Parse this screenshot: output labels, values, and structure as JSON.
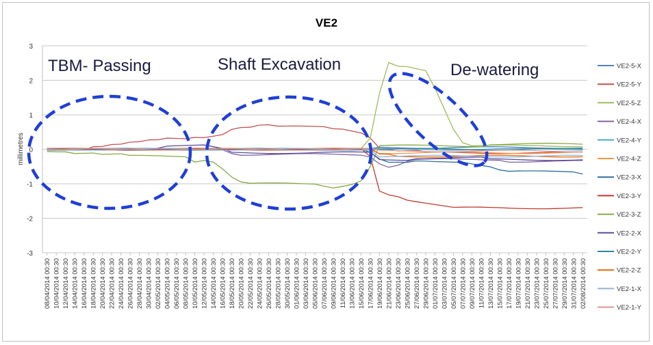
{
  "chart_data": {
    "type": "line",
    "title": "VE2",
    "ylabel": "millimetres",
    "xlabel": "",
    "ylim": [
      -3,
      3
    ],
    "yticks": [
      "3",
      "2",
      "1",
      "0",
      "-1",
      "-2",
      "-3"
    ],
    "grid": "horizontal",
    "legend_position": "right",
    "x": [
      "08/04/2014 00:30",
      "10/04/2014 00:30",
      "12/04/2014 00:30",
      "14/04/2014 00:30",
      "16/04/2014 00:30",
      "18/04/2014 00:30",
      "20/04/2014 00:30",
      "22/04/2014 00:30",
      "24/04/2014 00:30",
      "26/04/2014 00:30",
      "28/04/2014 00:30",
      "30/04/2014 00:30",
      "02/05/2014 00:30",
      "04/05/2014 00:30",
      "06/05/2014 00:30",
      "08/05/2014 00:30",
      "10/05/2014 00:30",
      "12/05/2014 00:30",
      "14/05/2014 00:30",
      "16/05/2014 00:30",
      "18/05/2014 00:30",
      "20/05/2014 00:30",
      "22/05/2014 00:30",
      "24/05/2014 00:30",
      "26/05/2014 00:30",
      "28/05/2014 00:30",
      "30/05/2014 00:30",
      "01/06/2014 00:30",
      "03/06/2014 00:30",
      "05/06/2014 00:30",
      "07/06/2014 00:30",
      "09/06/2014 00:30",
      "11/06/2014 00:30",
      "13/06/2014 00:30",
      "15/06/2014 00:30",
      "17/06/2014 00:30",
      "19/06/2014 00:30",
      "21/06/2014 00:30",
      "23/06/2014 00:30",
      "25/06/2014 00:30",
      "27/06/2014 00:30",
      "29/06/2014 00:30",
      "01/07/2014 00:30",
      "03/07/2014 00:30",
      "05/07/2014 00:30",
      "07/07/2014 00:30",
      "09/07/2014 00:30",
      "11/07/2014 00:30",
      "13/07/2014 00:30",
      "15/07/2014 00:30",
      "17/07/2014 00:30",
      "19/07/2014 00:30",
      "21/07/2014 00:30",
      "23/07/2014 00:30",
      "25/07/2014 00:30",
      "27/07/2014 00:30",
      "29/07/2014 00:30",
      "31/07/2014 00:30",
      "02/08/2014 00:30"
    ],
    "series": [
      {
        "name": "VE2-5-X",
        "color": "#4f81bd",
        "values": [
          0,
          0,
          0,
          0,
          0,
          0,
          0,
          0,
          0,
          0,
          0,
          0,
          0,
          0,
          0,
          0,
          0,
          0,
          0,
          0,
          0,
          0,
          0,
          0,
          0,
          0,
          0,
          0,
          0,
          0,
          0,
          0,
          0,
          0,
          0,
          0,
          0.05,
          0.05,
          0.05,
          0.05,
          0.05,
          0.05,
          0.05,
          0.05,
          0.05,
          0.05,
          0.05,
          0.05,
          0.05,
          0.05,
          0.05,
          0.05,
          0.05,
          0.05,
          0.05,
          0.05,
          0.05,
          0.05,
          0.05
        ]
      },
      {
        "name": "VE2-5-Y",
        "color": "#c0504d",
        "values": [
          0,
          0,
          0,
          0,
          0,
          0.1,
          0.1,
          0.15,
          0.15,
          0.2,
          0.2,
          0.25,
          0.25,
          0.3,
          0.3,
          0.3,
          0.35,
          0.35,
          0.4,
          0.45,
          0.6,
          0.65,
          0.65,
          0.7,
          0.7,
          0.65,
          0.65,
          0.65,
          0.65,
          0.65,
          0.65,
          0.6,
          0.6,
          0.55,
          0.5,
          0.35,
          0.05,
          0,
          -0.05,
          -0.05,
          -0.05,
          -0.1,
          -0.1,
          -0.1,
          -0.1,
          -0.1,
          -0.1,
          -0.1,
          -0.1,
          -0.1,
          -0.1,
          -0.1,
          -0.1,
          -0.1,
          -0.1,
          -0.1,
          -0.1,
          -0.1,
          -0.1
        ]
      },
      {
        "name": "VE2-5-Z",
        "color": "#9bbb59",
        "values": [
          0,
          0,
          0,
          0,
          0,
          0,
          0,
          0,
          0,
          0,
          0,
          0,
          0,
          0,
          0,
          0,
          0,
          0,
          0,
          0,
          0,
          0,
          0,
          0,
          0,
          0,
          0,
          0,
          0,
          0,
          0,
          0,
          0,
          0,
          0,
          0.3,
          1.6,
          2.5,
          2.4,
          2.4,
          2.35,
          2.3,
          1.8,
          1.2,
          0.6,
          0.2,
          0.1,
          0.1,
          0.1,
          0.1,
          0.1,
          0.1,
          0.1,
          0.1,
          0.1,
          0.1,
          0.1,
          0.1,
          0.1
        ]
      },
      {
        "name": "VE2-4-X",
        "color": "#8064a2",
        "values": [
          0,
          0,
          0,
          0,
          0,
          0,
          0,
          0,
          0,
          0,
          0,
          0,
          0,
          0,
          0,
          0,
          0,
          0,
          0,
          0,
          -0.1,
          -0.15,
          -0.15,
          -0.15,
          -0.15,
          -0.15,
          -0.15,
          -0.15,
          -0.15,
          -0.15,
          -0.15,
          -0.15,
          -0.15,
          -0.15,
          -0.15,
          -0.2,
          -0.4,
          -0.5,
          -0.45,
          -0.35,
          -0.3,
          -0.3,
          -0.3,
          -0.3,
          -0.3,
          -0.3,
          -0.3,
          -0.3,
          -0.3,
          -0.3,
          -0.35,
          -0.35,
          -0.35,
          -0.35,
          -0.35,
          -0.35,
          -0.35,
          -0.35,
          -0.35
        ]
      },
      {
        "name": "VE2-4-Y",
        "color": "#4bacc6",
        "values": [
          0,
          0,
          0,
          0,
          0,
          0,
          0,
          0,
          0,
          0,
          0,
          0,
          0,
          0,
          0,
          0,
          0,
          0,
          0,
          0,
          0,
          0,
          0,
          0,
          0,
          0,
          0,
          0,
          0,
          0,
          0,
          0,
          0,
          0,
          0,
          0,
          0,
          0,
          0,
          0,
          0,
          0,
          0,
          0,
          0,
          0,
          0,
          0,
          0,
          0,
          0,
          0,
          0,
          0,
          0,
          0,
          0,
          0,
          0
        ]
      },
      {
        "name": "VE2-4-Z",
        "color": "#f79646",
        "values": [
          0,
          0,
          0,
          0,
          0,
          0,
          0,
          0,
          0,
          0,
          0,
          0,
          0,
          0,
          0,
          0,
          0,
          0,
          0,
          0,
          0,
          0,
          0,
          0,
          0,
          0,
          0,
          0,
          0,
          0,
          0,
          0,
          0,
          0,
          0,
          0,
          -0.1,
          -0.1,
          -0.1,
          -0.1,
          -0.1,
          -0.1,
          -0.1,
          -0.1,
          -0.1,
          -0.1,
          -0.1,
          -0.1,
          -0.1,
          -0.1,
          -0.1,
          -0.1,
          -0.1,
          -0.1,
          -0.1,
          -0.1,
          -0.1,
          -0.1,
          -0.1
        ]
      },
      {
        "name": "VE2-3-X",
        "color": "#2c6e9b",
        "values": [
          0,
          0,
          0,
          0,
          0,
          0,
          0,
          0,
          0,
          0,
          0,
          0,
          0,
          0,
          0,
          0,
          0,
          0,
          0,
          0,
          0,
          0,
          0,
          0,
          0,
          0,
          0,
          0,
          0,
          0,
          0,
          0,
          0,
          0,
          0,
          -0.1,
          -0.3,
          -0.4,
          -0.4,
          -0.4,
          -0.35,
          -0.35,
          -0.35,
          -0.35,
          -0.35,
          -0.35,
          -0.4,
          -0.45,
          -0.5,
          -0.6,
          -0.65,
          -0.65,
          -0.65,
          -0.65,
          -0.65,
          -0.65,
          -0.65,
          -0.65,
          -0.7
        ]
      },
      {
        "name": "VE2-3-Y",
        "color": "#c0392b",
        "values": [
          0,
          0,
          0,
          0,
          0,
          0,
          0,
          0,
          0,
          0,
          0,
          0,
          0,
          0,
          0,
          0,
          0,
          0,
          0,
          0,
          0,
          0,
          0,
          0,
          0,
          0,
          0,
          0,
          0,
          0,
          0,
          0,
          0,
          0,
          0,
          -0.2,
          -1.2,
          -1.3,
          -1.35,
          -1.45,
          -1.5,
          -1.55,
          -1.6,
          -1.65,
          -1.7,
          -1.7,
          -1.7,
          -1.7,
          -1.7,
          -1.7,
          -1.7,
          -1.7,
          -1.7,
          -1.7,
          -1.7,
          -1.7,
          -1.7,
          -1.7,
          -1.7
        ]
      },
      {
        "name": "VE2-3-Z",
        "color": "#86a944",
        "values": [
          -0.05,
          -0.05,
          -0.05,
          -0.1,
          -0.1,
          -0.1,
          -0.15,
          -0.15,
          -0.15,
          -0.2,
          -0.2,
          -0.2,
          -0.2,
          -0.2,
          -0.2,
          -0.2,
          -0.35,
          -0.3,
          -0.35,
          -0.55,
          -0.8,
          -0.95,
          -1,
          -1,
          -1,
          -1,
          -1,
          -1,
          -1,
          -1,
          -1.05,
          -1.1,
          -1.05,
          -1,
          -0.9,
          -0.5,
          0.1,
          0.1,
          0.1,
          0.1,
          0.1,
          0.1,
          0.1,
          0.1,
          0.1,
          0.1,
          0.1,
          0.1,
          0.15,
          0.15,
          0.15,
          0.15,
          0.15,
          0.15,
          0.15,
          0.15,
          0.15,
          0.15,
          0.15
        ]
      },
      {
        "name": "VE2-2-X",
        "color": "#5b4a9b",
        "values": [
          0,
          0,
          0,
          0,
          0,
          0,
          0,
          0,
          0,
          0,
          0,
          0,
          0.05,
          0.1,
          0.1,
          0.1,
          0.1,
          0.1,
          0.05,
          0,
          -0.1,
          -0.1,
          -0.1,
          -0.1,
          -0.1,
          -0.1,
          -0.1,
          -0.1,
          -0.1,
          -0.1,
          -0.1,
          -0.1,
          -0.1,
          -0.1,
          -0.1,
          -0.1,
          -0.3,
          -0.3,
          -0.3,
          -0.3,
          -0.25,
          -0.25,
          -0.25,
          -0.25,
          -0.25,
          -0.25,
          -0.25,
          -0.25,
          -0.3,
          -0.3,
          -0.3,
          -0.3,
          -0.3,
          -0.3,
          -0.3,
          -0.3,
          -0.3,
          -0.3,
          -0.3
        ]
      },
      {
        "name": "VE2-2-Y",
        "color": "#31859c",
        "values": [
          0,
          0,
          0,
          0,
          0,
          0,
          0,
          0,
          0,
          0,
          0,
          0,
          0,
          0,
          0,
          0,
          0,
          0,
          0,
          0,
          0,
          0,
          0,
          0,
          0,
          0,
          0,
          0,
          0,
          0,
          0,
          0,
          0,
          0,
          0,
          0,
          0,
          0,
          0,
          0,
          0,
          0,
          0,
          0,
          0,
          0,
          0,
          0,
          0,
          0,
          0,
          0,
          0,
          0,
          0,
          0,
          0,
          0,
          0
        ]
      },
      {
        "name": "VE2-2-Z",
        "color": "#e46c0a",
        "values": [
          0,
          0,
          0,
          0,
          0,
          0,
          0,
          0,
          0,
          0,
          0,
          0,
          0,
          0,
          0,
          0,
          0,
          0,
          0,
          0,
          0,
          0,
          0,
          0,
          0,
          0,
          0,
          0,
          0,
          0,
          0,
          0,
          0,
          0,
          0,
          0,
          -0.15,
          -0.15,
          -0.2,
          -0.2,
          -0.2,
          -0.2,
          -0.2,
          -0.2,
          -0.2,
          -0.2,
          -0.2,
          -0.2,
          -0.2,
          -0.2,
          -0.2,
          -0.2,
          -0.2,
          -0.2,
          -0.2,
          -0.2,
          -0.2,
          -0.2,
          -0.2
        ]
      },
      {
        "name": "VE2-1-X",
        "color": "#95b3d7",
        "values": [
          0,
          0,
          0,
          0,
          0,
          0,
          0,
          0,
          0,
          0,
          0,
          0,
          0,
          0,
          0,
          0,
          0,
          0,
          0,
          0,
          0,
          0,
          0,
          0,
          0,
          0,
          0,
          0,
          0,
          0,
          0,
          0,
          0,
          0,
          0,
          0,
          -0.2,
          -0.2,
          -0.2,
          -0.2,
          -0.2,
          -0.2,
          -0.2,
          -0.2,
          -0.2,
          -0.2,
          -0.2,
          -0.2,
          -0.2,
          -0.2,
          -0.2,
          -0.2,
          -0.2,
          -0.2,
          -0.2,
          -0.2,
          -0.2,
          -0.2,
          -0.2
        ]
      },
      {
        "name": "VE2-1-Y",
        "color": "#d99694",
        "values": [
          0,
          0,
          0,
          0,
          0,
          0,
          0,
          0,
          0,
          0,
          0,
          0,
          0,
          0,
          0,
          0,
          0,
          0,
          0,
          0,
          0,
          0,
          0,
          0,
          0,
          0,
          0,
          0,
          0,
          0,
          0,
          0,
          0,
          0,
          0,
          0,
          -0.05,
          -0.05,
          -0.05,
          -0.05,
          -0.05,
          -0.05,
          -0.05,
          -0.05,
          -0.05,
          -0.05,
          -0.05,
          -0.05,
          -0.05,
          -0.05,
          -0.05,
          -0.05,
          -0.05,
          -0.05,
          -0.05,
          -0.05,
          -0.05,
          -0.05,
          -0.05
        ]
      }
    ],
    "annotations": [
      {
        "text": "TBM- Passing",
        "shape": "dashed-ellipse",
        "color": "#1f3fd6"
      },
      {
        "text": "Shaft Excavation",
        "shape": "dashed-ellipse",
        "color": "#1f3fd6"
      },
      {
        "text": "De-watering",
        "shape": "dashed-ellipse",
        "color": "#1f3fd6"
      }
    ]
  }
}
